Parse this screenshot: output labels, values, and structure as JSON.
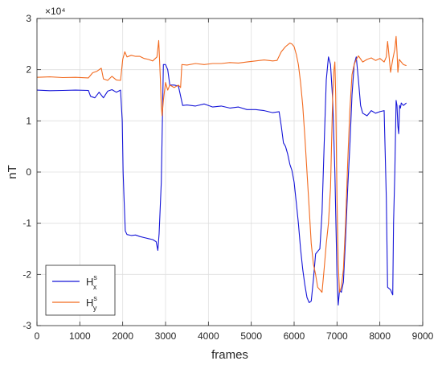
{
  "chart_data": {
    "type": "line",
    "title": "",
    "xlabel": "frames",
    "ylabel": "nT",
    "xlim": [
      0,
      9000
    ],
    "ylim": [
      -30000,
      30000
    ],
    "y_exponent_label": "×10⁴",
    "x_ticks": [
      0,
      1000,
      2000,
      3000,
      4000,
      5000,
      6000,
      7000,
      8000,
      9000
    ],
    "y_ticks": [
      -30000,
      -20000,
      -10000,
      0,
      10000,
      20000,
      30000
    ],
    "y_tick_labels": [
      "-3",
      "-2",
      "-1",
      "0",
      "1",
      "2",
      "3"
    ],
    "grid": true,
    "legend_position": "bottom-left",
    "series": [
      {
        "name": "H",
        "name_sup": "s",
        "name_sub": "x",
        "color": "#1515d8",
        "points": [
          [
            0,
            16000
          ],
          [
            300,
            15900
          ],
          [
            600,
            15950
          ],
          [
            900,
            16000
          ],
          [
            1200,
            15950
          ],
          [
            1250,
            14800
          ],
          [
            1350,
            14500
          ],
          [
            1450,
            15600
          ],
          [
            1550,
            14500
          ],
          [
            1650,
            15800
          ],
          [
            1750,
            16100
          ],
          [
            1850,
            15600
          ],
          [
            1950,
            16000
          ],
          [
            1990,
            10000
          ],
          [
            2010,
            0
          ],
          [
            2030,
            -5000
          ],
          [
            2060,
            -11500
          ],
          [
            2100,
            -12200
          ],
          [
            2200,
            -12400
          ],
          [
            2300,
            -12300
          ],
          [
            2400,
            -12600
          ],
          [
            2500,
            -12800
          ],
          [
            2600,
            -13000
          ],
          [
            2700,
            -13200
          ],
          [
            2780,
            -13600
          ],
          [
            2820,
            -15300
          ],
          [
            2850,
            -12000
          ],
          [
            2900,
            -2000
          ],
          [
            2950,
            21000
          ],
          [
            3000,
            21000
          ],
          [
            3050,
            20000
          ],
          [
            3100,
            17000
          ],
          [
            3200,
            17000
          ],
          [
            3300,
            16800
          ],
          [
            3400,
            13000
          ],
          [
            3500,
            13100
          ],
          [
            3700,
            12900
          ],
          [
            3900,
            13300
          ],
          [
            4100,
            12700
          ],
          [
            4300,
            12900
          ],
          [
            4500,
            12500
          ],
          [
            4700,
            12700
          ],
          [
            4900,
            12200
          ],
          [
            5100,
            12200
          ],
          [
            5300,
            12000
          ],
          [
            5500,
            11600
          ],
          [
            5650,
            11800
          ],
          [
            5700,
            9000
          ],
          [
            5750,
            5700
          ],
          [
            5800,
            5000
          ],
          [
            5850,
            3500
          ],
          [
            5900,
            1500
          ],
          [
            5950,
            300
          ],
          [
            6000,
            -2000
          ],
          [
            6050,
            -6000
          ],
          [
            6100,
            -10000
          ],
          [
            6150,
            -15000
          ],
          [
            6200,
            -19000
          ],
          [
            6250,
            -22000
          ],
          [
            6300,
            -24500
          ],
          [
            6350,
            -25500
          ],
          [
            6400,
            -25200
          ],
          [
            6450,
            -21000
          ],
          [
            6500,
            -16000
          ],
          [
            6550,
            -15500
          ],
          [
            6600,
            -15000
          ],
          [
            6650,
            -8000
          ],
          [
            6700,
            5000
          ],
          [
            6750,
            18000
          ],
          [
            6800,
            22500
          ],
          [
            6850,
            21000
          ],
          [
            6900,
            14000
          ],
          [
            6950,
            0
          ],
          [
            7000,
            -20000
          ],
          [
            7030,
            -26000
          ],
          [
            7060,
            -23000
          ],
          [
            7100,
            -23500
          ],
          [
            7150,
            -21500
          ],
          [
            7200,
            -13000
          ],
          [
            7250,
            -3000
          ],
          [
            7300,
            5000
          ],
          [
            7350,
            15000
          ],
          [
            7400,
            21000
          ],
          [
            7450,
            22500
          ],
          [
            7500,
            18000
          ],
          [
            7550,
            13000
          ],
          [
            7600,
            11500
          ],
          [
            7700,
            11000
          ],
          [
            7800,
            12000
          ],
          [
            7900,
            11500
          ],
          [
            8000,
            11800
          ],
          [
            8100,
            12000
          ],
          [
            8150,
            -5000
          ],
          [
            8180,
            -22500
          ],
          [
            8250,
            -23000
          ],
          [
            8300,
            -24000
          ],
          [
            8320,
            -10000
          ],
          [
            8350,
            0
          ],
          [
            8380,
            14000
          ],
          [
            8400,
            13000
          ],
          [
            8420,
            9000
          ],
          [
            8440,
            7500
          ],
          [
            8460,
            13000
          ],
          [
            8480,
            12500
          ],
          [
            8500,
            13500
          ],
          [
            8550,
            13000
          ],
          [
            8620,
            13500
          ]
        ]
      },
      {
        "name": "H",
        "name_sup": "s",
        "name_sub": "y",
        "color": "#f26a1f",
        "points": [
          [
            0,
            18500
          ],
          [
            300,
            18600
          ],
          [
            600,
            18450
          ],
          [
            900,
            18500
          ],
          [
            1200,
            18400
          ],
          [
            1300,
            19400
          ],
          [
            1400,
            19700
          ],
          [
            1500,
            20300
          ],
          [
            1550,
            18200
          ],
          [
            1650,
            17900
          ],
          [
            1750,
            18700
          ],
          [
            1850,
            18000
          ],
          [
            1950,
            17900
          ],
          [
            2000,
            22000
          ],
          [
            2050,
            23500
          ],
          [
            2100,
            22500
          ],
          [
            2200,
            22800
          ],
          [
            2300,
            22600
          ],
          [
            2400,
            22600
          ],
          [
            2500,
            22200
          ],
          [
            2600,
            22000
          ],
          [
            2700,
            21700
          ],
          [
            2800,
            22500
          ],
          [
            2840,
            25700
          ],
          [
            2880,
            18000
          ],
          [
            2900,
            13000
          ],
          [
            2920,
            11000
          ],
          [
            2950,
            14000
          ],
          [
            3000,
            17500
          ],
          [
            3050,
            16000
          ],
          [
            3100,
            17000
          ],
          [
            3200,
            16500
          ],
          [
            3300,
            17000
          ],
          [
            3350,
            16500
          ],
          [
            3380,
            21000
          ],
          [
            3500,
            20900
          ],
          [
            3700,
            21200
          ],
          [
            3900,
            21000
          ],
          [
            4100,
            21200
          ],
          [
            4300,
            21200
          ],
          [
            4500,
            21400
          ],
          [
            4700,
            21300
          ],
          [
            4900,
            21500
          ],
          [
            5100,
            21700
          ],
          [
            5300,
            21900
          ],
          [
            5500,
            21700
          ],
          [
            5600,
            21800
          ],
          [
            5700,
            23500
          ],
          [
            5800,
            24500
          ],
          [
            5900,
            25200
          ],
          [
            5950,
            25000
          ],
          [
            6000,
            24500
          ],
          [
            6050,
            23000
          ],
          [
            6100,
            21000
          ],
          [
            6150,
            17500
          ],
          [
            6200,
            13000
          ],
          [
            6250,
            7000
          ],
          [
            6300,
            0
          ],
          [
            6350,
            -7000
          ],
          [
            6400,
            -14000
          ],
          [
            6450,
            -18000
          ],
          [
            6500,
            -20000
          ],
          [
            6550,
            -22500
          ],
          [
            6600,
            -23000
          ],
          [
            6650,
            -23500
          ],
          [
            6700,
            -19000
          ],
          [
            6750,
            -14000
          ],
          [
            6800,
            -10000
          ],
          [
            6850,
            -3000
          ],
          [
            6900,
            15000
          ],
          [
            6930,
            20000
          ],
          [
            6950,
            21500
          ],
          [
            6970,
            15000
          ],
          [
            7000,
            -5000
          ],
          [
            7030,
            -18000
          ],
          [
            7060,
            -23500
          ],
          [
            7100,
            -22500
          ],
          [
            7150,
            -19000
          ],
          [
            7200,
            -10000
          ],
          [
            7250,
            2000
          ],
          [
            7300,
            12000
          ],
          [
            7350,
            19000
          ],
          [
            7400,
            21000
          ],
          [
            7450,
            22000
          ],
          [
            7500,
            22700
          ],
          [
            7600,
            21500
          ],
          [
            7700,
            22000
          ],
          [
            7800,
            22300
          ],
          [
            7900,
            21800
          ],
          [
            8000,
            22200
          ],
          [
            8100,
            21500
          ],
          [
            8150,
            22500
          ],
          [
            8180,
            25500
          ],
          [
            8200,
            24000
          ],
          [
            8250,
            19500
          ],
          [
            8300,
            22000
          ],
          [
            8350,
            24000
          ],
          [
            8380,
            26500
          ],
          [
            8400,
            23500
          ],
          [
            8420,
            19500
          ],
          [
            8450,
            22000
          ],
          [
            8500,
            21500
          ],
          [
            8550,
            21000
          ],
          [
            8620,
            20800
          ]
        ]
      }
    ]
  }
}
